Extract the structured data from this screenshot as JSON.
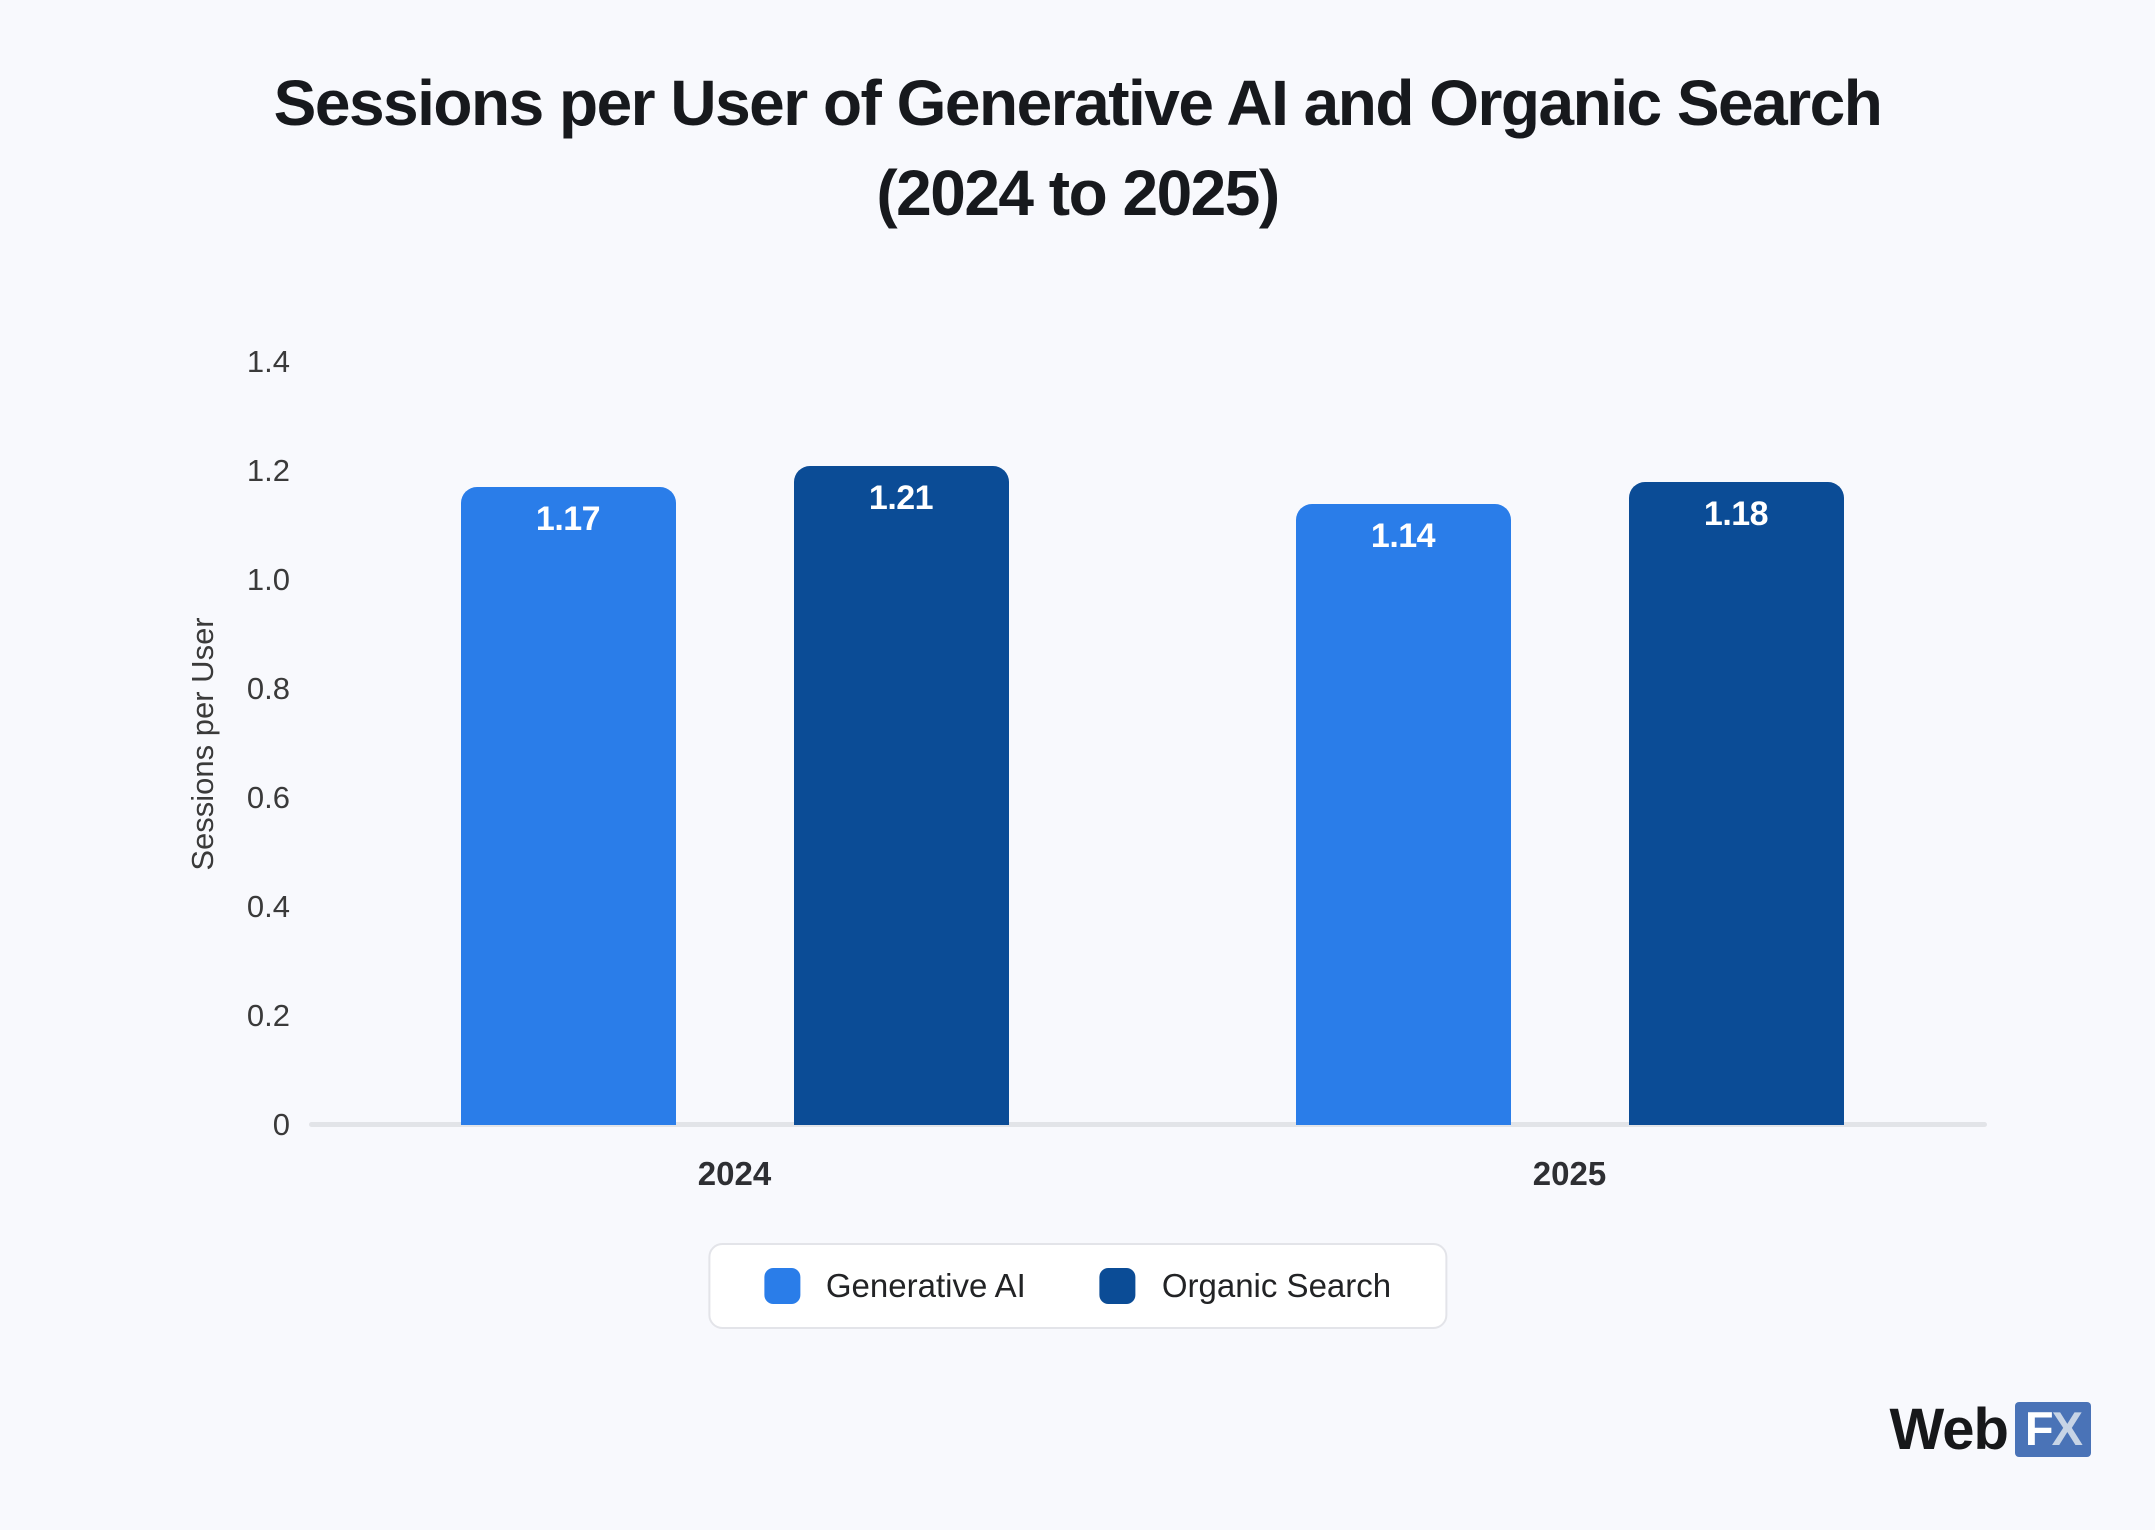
{
  "title": {
    "line1": "Sessions per User of Generative AI and Organic Search",
    "line2": "(2024 to 2025)"
  },
  "chart_data": {
    "type": "bar",
    "title": "Sessions per User of Generative AI and Organic Search (2024 to 2025)",
    "categories": [
      "2024",
      "2025"
    ],
    "series": [
      {
        "name": "Generative AI",
        "color": "#2A7DE9",
        "values": [
          1.17,
          1.14
        ],
        "labels": [
          "1.17",
          "1.14"
        ]
      },
      {
        "name": "Organic Search",
        "color": "#0B4C96",
        "values": [
          1.21,
          1.18
        ],
        "labels": [
          "1.21",
          "1.18"
        ]
      }
    ],
    "xlabel": "",
    "ylabel": "Sessions per User",
    "ylim": [
      0,
      1.4
    ],
    "yticks": [
      {
        "value": 1.4,
        "label": "1.4"
      },
      {
        "value": 1.2,
        "label": "1.2"
      },
      {
        "value": 1.0,
        "label": "1.0"
      },
      {
        "value": 0.8,
        "label": "0.8"
      },
      {
        "value": 0.6,
        "label": "0.6"
      },
      {
        "value": 0.4,
        "label": "0.4"
      },
      {
        "value": 0.2,
        "label": "0.2"
      },
      {
        "value": 0,
        "label": "0"
      }
    ],
    "grid": false,
    "legend_position": "bottom"
  },
  "legend": {
    "items": [
      {
        "label": "Generative AI",
        "color": "#2A7DE9"
      },
      {
        "label": "Organic Search",
        "color": "#0B4C96"
      }
    ]
  },
  "branding": {
    "web": "Web",
    "f": "F",
    "x": "X"
  },
  "colors": {
    "background": "#F8F9FD",
    "title": "#17191D",
    "axis_text": "#3A3A3A",
    "axis_line": "#E2E4E8",
    "bar_light": "#2A7DE9",
    "bar_dark": "#0B4C96",
    "value_label": "#FFFFFF",
    "legend_border": "#E3E4E9",
    "logo_box": "#4A73B7",
    "logo_x_letter": "#C7D4E6"
  }
}
